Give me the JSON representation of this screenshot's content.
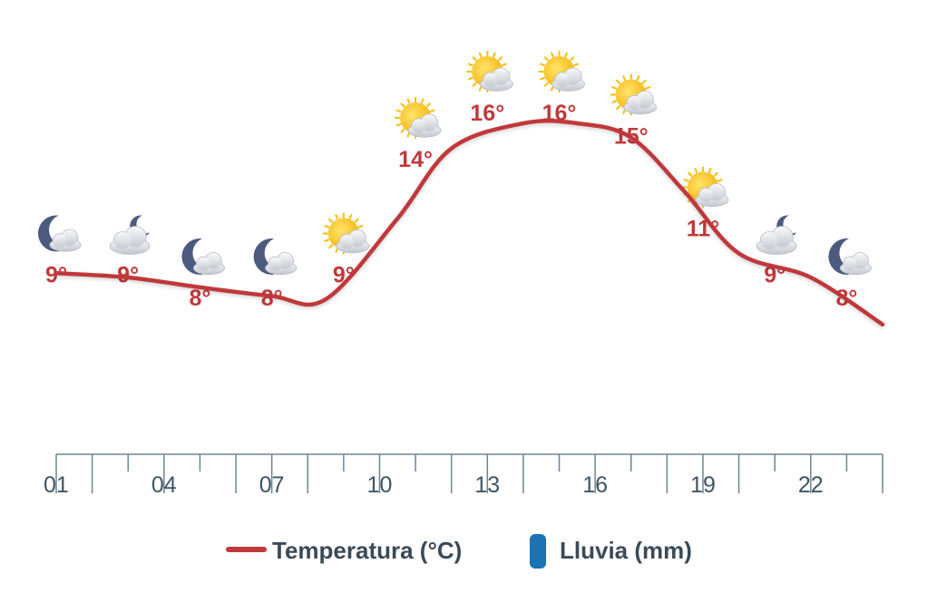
{
  "chart_data": {
    "type": "line",
    "x_tick_labels": [
      "01",
      "04",
      "07",
      "10",
      "13",
      "16",
      "19",
      "22"
    ],
    "hours": [
      1,
      3,
      5,
      7,
      9,
      11,
      13,
      15,
      17,
      19,
      21,
      23
    ],
    "temperature_values": [
      9,
      9,
      8,
      8,
      9,
      14,
      16,
      16,
      15,
      11,
      9,
      8
    ],
    "temperature_labels": [
      "9°",
      "9°",
      "8°",
      "8°",
      "9°",
      "14°",
      "16°",
      "16°",
      "15°",
      "11°",
      "9°",
      "8°"
    ],
    "icons": [
      "moon-cloud-icon",
      "cloud-moon-icon",
      "moon-cloud-icon",
      "moon-cloud-icon",
      "sun-cloud-icon",
      "sun-cloud-icon",
      "sun-cloud-icon",
      "sun-cloud-icon",
      "sun-cloud-icon",
      "sun-cloud-icon",
      "cloud-moon-icon",
      "moon-cloud-icon"
    ],
    "legend": [
      {
        "name": "Temperatura (°C)",
        "color": "#c0393b"
      },
      {
        "name": "Lluvia (mm)",
        "color": "#1a73b5"
      }
    ],
    "ylim": [
      2,
      19
    ],
    "grid": false
  }
}
